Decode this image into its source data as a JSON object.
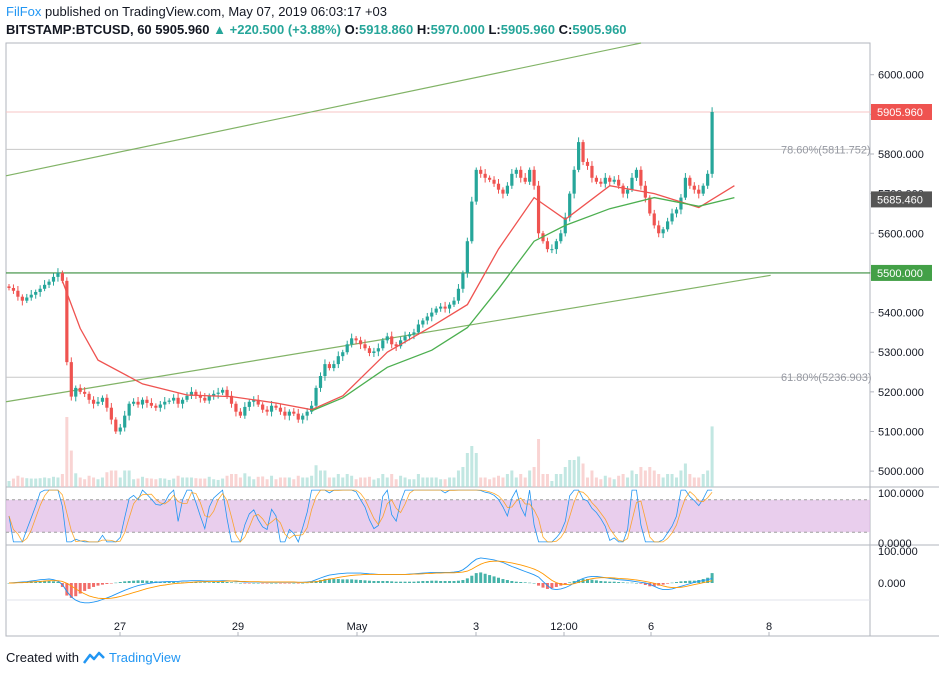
{
  "header": {
    "author": "FilFox",
    "published_text": "published on TradingView.com, May 07, 2019 06:03:17 +03",
    "symbol": "BITSTAMP:BTCUSD, 60",
    "last": "5905.960",
    "change": "▲ +220.500 (+3.88%)",
    "o_label": "O:",
    "o_value": "5918.860",
    "h_label": "H:",
    "h_value": "5970.000",
    "l_label": "L:",
    "l_value": "5905.960",
    "c_label": "C:",
    "c_value": "5905.960"
  },
  "footer": {
    "created_with": "Created with",
    "brand": "TradingView"
  },
  "colors": {
    "up": "#26a69a",
    "down": "#ef5350",
    "ma_fast": "#ef5350",
    "ma_slow": "#4caf50",
    "trend": "#81b366",
    "support": "#388e3c",
    "stoch_band": "#e1bee7",
    "macd_line": "#2196f3",
    "signal_line": "#ff9800",
    "last_tag": "#ef5350",
    "ma_tag": "#555555",
    "support_tag": "#43a047"
  },
  "chart_data": {
    "type": "candlestick",
    "x_ticks": [
      "27",
      "29",
      "May",
      "3",
      "12:00",
      "6",
      "8"
    ],
    "y_ticks": [
      "6000.000",
      "5900.000",
      "5800.000",
      "5700.000",
      "5600.000",
      "5500.000",
      "5400.000",
      "5300.000",
      "5200.000",
      "5100.000",
      "5000.000"
    ],
    "ylim": [
      4960,
      6080
    ],
    "price_tags": [
      {
        "label": "5905.960",
        "value": 5905.96,
        "kind": "last"
      },
      {
        "label": "5685.460",
        "value": 5685.46,
        "kind": "ma"
      },
      {
        "label": "5500.000",
        "value": 5500,
        "kind": "support"
      }
    ],
    "fib_levels": [
      {
        "label": "78.60%(5811.752)",
        "value": 5811.752
      },
      {
        "label": "61.80%(5236.903)",
        "value": 5236.903
      }
    ],
    "support_level": 5500,
    "closes": [
      5462,
      5455,
      5440,
      5430,
      5438,
      5445,
      5452,
      5460,
      5470,
      5478,
      5490,
      5500,
      5480,
      5275,
      5188,
      5210,
      5200,
      5195,
      5180,
      5170,
      5175,
      5185,
      5160,
      5130,
      5100,
      5110,
      5140,
      5170,
      5175,
      5168,
      5180,
      5172,
      5165,
      5160,
      5168,
      5175,
      5178,
      5185,
      5170,
      5180,
      5190,
      5200,
      5192,
      5185,
      5178,
      5190,
      5195,
      5198,
      5205,
      5190,
      5170,
      5150,
      5140,
      5162,
      5175,
      5180,
      5168,
      5155,
      5150,
      5165,
      5160,
      5150,
      5140,
      5150,
      5145,
      5130,
      5140,
      5150,
      5165,
      5210,
      5240,
      5270,
      5260,
      5270,
      5290,
      5300,
      5320,
      5335,
      5330,
      5320,
      5310,
      5298,
      5302,
      5310,
      5330,
      5340,
      5320,
      5315,
      5330,
      5340,
      5345,
      5350,
      5370,
      5380,
      5390,
      5400,
      5410,
      5415,
      5410,
      5420,
      5430,
      5460,
      5500,
      5580,
      5680,
      5760,
      5750,
      5740,
      5735,
      5725,
      5710,
      5700,
      5720,
      5750,
      5760,
      5740,
      5730,
      5760,
      5720,
      5600,
      5580,
      5560,
      5560,
      5580,
      5600,
      5640,
      5700,
      5760,
      5830,
      5780,
      5770,
      5740,
      5730,
      5725,
      5740,
      5730,
      5735,
      5720,
      5700,
      5710,
      5740,
      5760,
      5720,
      5690,
      5650,
      5620,
      5600,
      5610,
      5630,
      5650,
      5660,
      5690,
      5740,
      5720,
      5710,
      5700,
      5720,
      5750,
      5905.96
    ],
    "ma_fast": [
      {
        "i": 12,
        "v": 5480
      },
      {
        "i": 16,
        "v": 5360
      },
      {
        "i": 20,
        "v": 5280
      },
      {
        "i": 30,
        "v": 5220
      },
      {
        "i": 40,
        "v": 5192
      },
      {
        "i": 50,
        "v": 5188
      },
      {
        "i": 60,
        "v": 5172
      },
      {
        "i": 68,
        "v": 5155
      },
      {
        "i": 75,
        "v": 5190
      },
      {
        "i": 85,
        "v": 5300
      },
      {
        "i": 95,
        "v": 5365
      },
      {
        "i": 103,
        "v": 5420
      },
      {
        "i": 110,
        "v": 5560
      },
      {
        "i": 118,
        "v": 5690
      },
      {
        "i": 125,
        "v": 5635
      },
      {
        "i": 135,
        "v": 5720
      },
      {
        "i": 145,
        "v": 5700
      },
      {
        "i": 155,
        "v": 5665
      },
      {
        "i": 163,
        "v": 5720
      }
    ],
    "ma_slow": [
      {
        "i": 68,
        "v": 5152
      },
      {
        "i": 75,
        "v": 5185
      },
      {
        "i": 85,
        "v": 5262
      },
      {
        "i": 95,
        "v": 5305
      },
      {
        "i": 103,
        "v": 5362
      },
      {
        "i": 110,
        "v": 5460
      },
      {
        "i": 118,
        "v": 5580
      },
      {
        "i": 125,
        "v": 5620
      },
      {
        "i": 135,
        "v": 5662
      },
      {
        "i": 145,
        "v": 5690
      },
      {
        "i": 155,
        "v": 5668
      },
      {
        "i": 163,
        "v": 5690
      }
    ],
    "trend_lines": [
      {
        "x1": 0.0,
        "y1": 5745,
        "x2": 0.735,
        "y2": 6080
      },
      {
        "x1": 0.0,
        "y1": 5175,
        "x2": 0.885,
        "y2": 5494
      }
    ],
    "stoch": {
      "y_ticks": [
        "100.0000",
        "0.0000"
      ],
      "band": [
        20,
        80
      ]
    },
    "macd": {
      "y_ticks": [
        "100.000",
        "0.000"
      ],
      "hist": [
        0,
        1,
        2,
        2,
        3,
        4,
        5,
        6,
        6,
        6,
        5,
        4,
        -12,
        -38,
        -45,
        -40,
        -32,
        -24,
        -18,
        -12,
        -8,
        -5,
        -3,
        -1,
        1,
        3,
        5,
        6,
        7,
        8,
        8,
        7,
        6,
        5,
        4,
        4,
        3,
        3,
        2,
        2,
        2,
        3,
        3,
        2,
        2,
        2,
        3,
        3,
        4,
        3,
        2,
        1,
        0,
        -1,
        -1,
        0,
        0,
        -1,
        -1,
        0,
        0,
        -1,
        -1,
        -1,
        0,
        -1,
        0,
        1,
        2,
        6,
        9,
        12,
        13,
        12,
        12,
        11,
        11,
        11,
        10,
        9,
        8,
        7,
        6,
        6,
        6,
        6,
        5,
        4,
        4,
        4,
        4,
        4,
        5,
        6,
        6,
        7,
        7,
        6,
        6,
        6,
        6,
        7,
        9,
        14,
        22,
        30,
        32,
        28,
        24,
        20,
        16,
        12,
        9,
        6,
        4,
        3,
        2,
        1,
        0,
        -8,
        -14,
        -18,
        -16,
        -12,
        -8,
        -4,
        2,
        6,
        10,
        12,
        12,
        10,
        8,
        6,
        5,
        4,
        4,
        3,
        2,
        1,
        1,
        0,
        -2,
        -6,
        -10,
        -10,
        -8,
        -5,
        -2,
        1,
        3,
        5,
        6,
        7,
        7,
        9,
        12,
        16,
        30
      ],
      "macd_line": [
        0,
        1,
        2,
        3,
        4,
        6,
        8,
        10,
        11,
        12,
        10,
        6,
        -5,
        -25,
        -42,
        -52,
        -58,
        -60,
        -60,
        -58,
        -55,
        -50,
        -45,
        -40,
        -34,
        -28,
        -22,
        -17,
        -12,
        -8,
        -5,
        -2,
        0,
        2,
        3,
        4,
        5,
        5,
        5,
        6,
        6,
        7,
        7,
        7,
        6,
        6,
        6,
        6,
        7,
        7,
        6,
        5,
        4,
        3,
        3,
        3,
        3,
        2,
        2,
        2,
        2,
        2,
        2,
        2,
        2,
        2,
        2,
        3,
        5,
        10,
        15,
        20,
        24,
        26,
        28,
        29,
        30,
        30,
        30,
        30,
        29,
        28,
        27,
        26,
        26,
        26,
        26,
        26,
        26,
        26,
        27,
        28,
        29,
        30,
        31,
        32,
        32,
        32,
        32,
        32,
        33,
        35,
        40,
        50,
        62,
        72,
        76,
        74,
        72,
        70,
        66,
        62,
        56,
        50,
        45,
        40,
        35,
        30,
        25,
        18,
        5,
        -8,
        -18,
        -20,
        -18,
        -14,
        -8,
        0,
        8,
        14,
        18,
        20,
        20,
        18,
        16,
        14,
        12,
        10,
        9,
        8,
        6,
        4,
        2,
        0,
        -4,
        -10,
        -16,
        -20,
        -20,
        -18,
        -14,
        -10,
        -6,
        -2,
        2,
        5,
        8,
        10,
        14,
        20,
        28,
        45
      ],
      "signal_line": [
        0,
        0,
        1,
        1,
        2,
        3,
        4,
        5,
        6,
        7,
        7,
        7,
        5,
        -1,
        -9,
        -18,
        -26,
        -33,
        -39,
        -43,
        -46,
        -47,
        -47,
        -46,
        -44,
        -41,
        -37,
        -33,
        -29,
        -25,
        -21,
        -17,
        -14,
        -11,
        -8,
        -6,
        -4,
        -2,
        -1,
        0,
        1,
        2,
        3,
        4,
        4,
        5,
        5,
        5,
        5,
        6,
        6,
        6,
        5,
        5,
        4,
        4,
        4,
        3,
        3,
        3,
        3,
        3,
        3,
        3,
        3,
        2,
        2,
        2,
        3,
        4,
        6,
        9,
        12,
        14,
        17,
        19,
        21,
        23,
        24,
        25,
        26,
        26,
        26,
        26,
        26,
        26,
        26,
        26,
        26,
        26,
        26,
        27,
        27,
        28,
        29,
        29,
        30,
        30,
        31,
        31,
        31,
        32,
        33,
        36,
        42,
        50,
        57,
        62,
        65,
        66,
        66,
        65,
        63,
        61,
        58,
        55,
        51,
        47,
        42,
        36,
        28,
        18,
        8,
        1,
        -3,
        -5,
        -4,
        -2,
        2,
        6,
        10,
        13,
        15,
        16,
        16,
        16,
        15,
        14,
        13,
        12,
        11,
        9,
        7,
        5,
        2,
        -1,
        -5,
        -9,
        -12,
        -14,
        -14,
        -13,
        -11,
        -8,
        -5,
        -2,
        1,
        4,
        7,
        11,
        16,
        25
      ]
    }
  }
}
